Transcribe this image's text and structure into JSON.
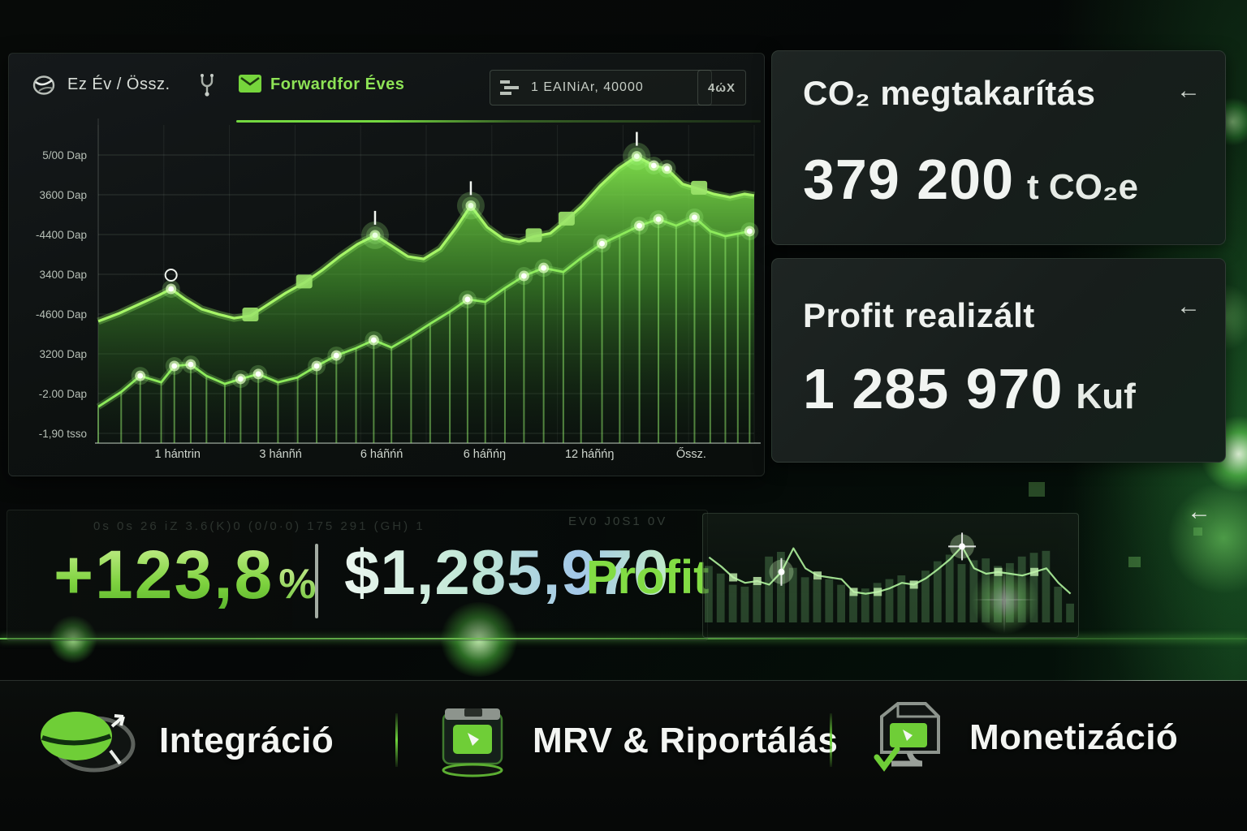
{
  "toolbar": {
    "period_label": "Ez Év / Össz.",
    "active_tab": "Forwardfor Éves",
    "filter_value": "1 EAINiAr, 40000",
    "actions_label": "4ώX"
  },
  "chart_data": [
    {
      "name": "forward-curve-chart",
      "type": "area",
      "grid": true,
      "legend": false,
      "y_axis_labels": [
        "5/00 Dap",
        "3600 Dap",
        "-4400 Dap",
        "3400 Dap",
        "-4600 Dap",
        "3200 Dap",
        "-2.00 Dap",
        "-1,90 tsso"
      ],
      "x_axis_labels": [
        "1 hántrin",
        "3 hánñń",
        "6 háñńń",
        "6 háñńŋ",
        "12 háñńŋ",
        "Őssz."
      ],
      "series": [
        {
          "name": "CO₂ forward area",
          "type": "area",
          "x": [
            0,
            3.1,
            6.2,
            9.3,
            11.1,
            13.3,
            15.8,
            18.3,
            20.7,
            23.2,
            25.9,
            28.6,
            31.4,
            34.1,
            36.8,
            39.5,
            42.2,
            44.7,
            47.2,
            49.6,
            52.1,
            54.6,
            56.8,
            59.3,
            61.7,
            64.2,
            66.4,
            68.9,
            71.4,
            73.8,
            76.5,
            79.3,
            82.1,
            84.7,
            86.7,
            89.1,
            91.6,
            93.8,
            96.3,
            98.5,
            100
          ],
          "values": [
            39.5,
            42,
            45,
            48,
            50,
            46.6,
            43.4,
            41.8,
            40.5,
            41.3,
            45,
            48.7,
            52,
            56,
            60.5,
            64.5,
            67.4,
            64,
            60.5,
            59.7,
            63,
            70,
            77,
            70,
            66.3,
            65.3,
            67,
            68,
            72.4,
            77,
            83.4,
            89,
            93,
            90,
            89,
            84,
            82.4,
            80.8,
            79.7,
            80.8,
            80.3
          ],
          "markers": [
            0,
            0,
            0,
            0,
            7,
            0,
            0,
            0,
            0,
            2,
            0,
            0,
            2,
            0,
            0,
            0,
            3,
            0,
            0,
            0,
            0,
            0,
            3,
            0,
            0,
            0,
            2,
            0,
            2,
            0,
            0,
            0,
            3,
            1,
            1,
            0,
            2,
            0,
            0,
            0,
            0
          ]
        },
        {
          "name": "Profit realizált stems",
          "type": "lollipop",
          "x": [
            0,
            3.5,
            6.4,
            9.6,
            11.6,
            14.1,
            16.5,
            19.3,
            21.7,
            24.4,
            27.4,
            30.4,
            33.3,
            36.3,
            39.3,
            42,
            44.7,
            47.7,
            50.6,
            53.6,
            56.3,
            59,
            62,
            64.9,
            67.9,
            70.9,
            73.6,
            76.8,
            79.5,
            82.5,
            85.4,
            88.1,
            90.9,
            93.3,
            95.6,
            97.5,
            99.3
          ],
          "values": [
            11.8,
            16.6,
            21.8,
            19.7,
            25,
            25.5,
            21.8,
            19.2,
            20.8,
            22.4,
            19.7,
            21.3,
            25,
            28.4,
            30.8,
            33.4,
            31,
            34.7,
            38.7,
            42.6,
            46.6,
            45.8,
            50.3,
            54.2,
            56.8,
            55.5,
            60,
            64.7,
            67.4,
            70.5,
            72.6,
            70.5,
            73.2,
            68.7,
            67.1,
            67.9,
            68.7
          ],
          "markers": [
            0,
            0,
            1,
            0,
            1,
            1,
            0,
            0,
            1,
            1,
            0,
            0,
            1,
            1,
            0,
            1,
            0,
            0,
            0,
            0,
            1,
            0,
            0,
            1,
            1,
            0,
            0,
            1,
            0,
            1,
            1,
            0,
            1,
            0,
            0,
            0,
            1
          ]
        }
      ]
    },
    {
      "name": "mini-trend-chart",
      "type": "bar+line",
      "bars": [
        60,
        52,
        40,
        38,
        42,
        70,
        75,
        58,
        48,
        45,
        46,
        40,
        32,
        36,
        42,
        46,
        50,
        44,
        55,
        65,
        72,
        62,
        66,
        68,
        60,
        63,
        70,
        74,
        76,
        38,
        20
      ],
      "line": [
        68,
        58,
        46,
        40,
        42,
        38,
        52,
        78,
        56,
        48,
        46,
        44,
        30,
        28,
        30,
        34,
        40,
        38,
        45,
        55,
        66,
        80,
        56,
        50,
        52,
        50,
        48,
        52,
        56,
        40,
        28
      ],
      "markers": [
        0,
        0,
        2,
        0,
        2,
        0,
        4,
        0,
        0,
        2,
        0,
        0,
        2,
        0,
        2,
        0,
        0,
        2,
        0,
        0,
        0,
        5,
        0,
        0,
        2,
        0,
        0,
        2,
        0,
        0,
        0
      ]
    }
  ],
  "kpi_cards": [
    {
      "title": "CO₂ megtakarítás",
      "value": "379 200",
      "unit": "t CO₂e",
      "arrow": "←"
    },
    {
      "title": "Profit realizált",
      "value": "1 285 970",
      "unit": "Kuf",
      "arrow": "←"
    }
  ],
  "back_arrow": "←",
  "stats": {
    "ticker_left": "0s 0s 26 iZ 3.6(K)0 (0/0·0) 175 291 (GH) 1",
    "ticker_right": "EV0 J0S1 0V",
    "percent_value": "+123,8",
    "percent_sign": "%",
    "amount": "$1,285,970",
    "amount_label": "Profit"
  },
  "nav": {
    "items": [
      {
        "label": "Integráció",
        "icon": "integration-leaf-icon"
      },
      {
        "label": "MRV & Riportálás",
        "icon": "mrv-laptop-icon"
      },
      {
        "label": "Monetizáció",
        "icon": "monetization-box-icon"
      }
    ]
  },
  "colors": {
    "accent_green": "#76d53c",
    "line_green": "#8deb5b",
    "tab_green": "#8ee356",
    "background": "#060808"
  }
}
